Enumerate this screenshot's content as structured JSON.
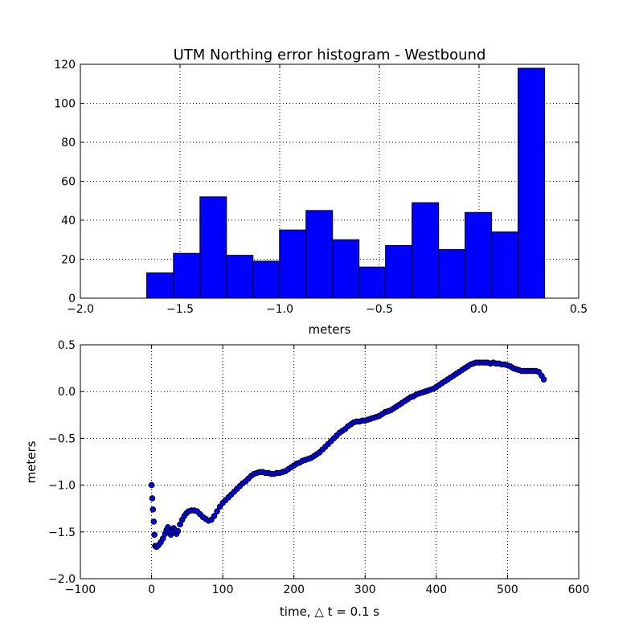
{
  "chart_data": [
    {
      "type": "bar",
      "title": "UTM Northing error histogram - Westbound",
      "xlabel": "meters",
      "ylabel": "",
      "xlim": [
        -2.0,
        0.5
      ],
      "ylim": [
        0,
        120
      ],
      "xticks": [
        -2.0,
        -1.5,
        -1.0,
        -0.5,
        0.0,
        0.5
      ],
      "xtick_labels": [
        "−2.0",
        "−1.5",
        "−1.0",
        "−0.5",
        "0.0",
        "0.5"
      ],
      "yticks": [
        0,
        20,
        40,
        60,
        80,
        100,
        120
      ],
      "ytick_labels": [
        "0",
        "20",
        "40",
        "60",
        "80",
        "100",
        "120"
      ],
      "grid": true,
      "bar_color": "#0000ff",
      "bins": [
        {
          "start": -1.667,
          "end": -1.533,
          "count": 13
        },
        {
          "start": -1.533,
          "end": -1.4,
          "count": 23
        },
        {
          "start": -1.4,
          "end": -1.267,
          "count": 52
        },
        {
          "start": -1.267,
          "end": -1.134,
          "count": 22
        },
        {
          "start": -1.134,
          "end": -1.001,
          "count": 19
        },
        {
          "start": -1.001,
          "end": -0.868,
          "count": 35
        },
        {
          "start": -0.868,
          "end": -0.735,
          "count": 45
        },
        {
          "start": -0.735,
          "end": -0.602,
          "count": 30
        },
        {
          "start": -0.602,
          "end": -0.469,
          "count": 16
        },
        {
          "start": -0.469,
          "end": -0.336,
          "count": 27
        },
        {
          "start": -0.336,
          "end": -0.203,
          "count": 49
        },
        {
          "start": -0.203,
          "end": -0.07,
          "count": 25
        },
        {
          "start": -0.07,
          "end": 0.063,
          "count": 44
        },
        {
          "start": 0.063,
          "end": 0.196,
          "count": 34
        },
        {
          "start": 0.196,
          "end": 0.329,
          "count": 118
        }
      ]
    },
    {
      "type": "scatter",
      "title": "",
      "xlabel": "time, △ t = 0.1 s",
      "ylabel": "meters",
      "xlim": [
        -100,
        600
      ],
      "ylim": [
        -2.0,
        0.5
      ],
      "xticks": [
        -100,
        0,
        100,
        200,
        300,
        400,
        500,
        600
      ],
      "xtick_labels": [
        "−100",
        "0",
        "100",
        "200",
        "300",
        "400",
        "500",
        "600"
      ],
      "yticks": [
        -2.0,
        -1.5,
        -1.0,
        -0.5,
        0.0,
        0.5
      ],
      "ytick_labels": [
        "−2.0",
        "−1.5",
        "−1.0",
        "−0.5",
        "0.0",
        "0.5"
      ],
      "grid": true,
      "marker_color": "#0000ff",
      "marker_edge": "#000000",
      "points": [
        [
          0,
          -1.0
        ],
        [
          1,
          -1.14
        ],
        [
          2,
          -1.26
        ],
        [
          3,
          -1.39
        ],
        [
          4,
          -1.53
        ],
        [
          5,
          -1.65
        ],
        [
          7,
          -1.66
        ],
        [
          10,
          -1.64
        ],
        [
          13,
          -1.61
        ],
        [
          16,
          -1.57
        ],
        [
          19,
          -1.52
        ],
        [
          21,
          -1.48
        ],
        [
          23,
          -1.45
        ],
        [
          25,
          -1.49
        ],
        [
          27,
          -1.53
        ],
        [
          29,
          -1.5
        ],
        [
          31,
          -1.46
        ],
        [
          33,
          -1.48
        ],
        [
          35,
          -1.52
        ],
        [
          37,
          -1.49
        ],
        [
          40,
          -1.42
        ],
        [
          43,
          -1.37
        ],
        [
          46,
          -1.33
        ],
        [
          49,
          -1.3
        ],
        [
          52,
          -1.28
        ],
        [
          56,
          -1.27
        ],
        [
          60,
          -1.27
        ],
        [
          64,
          -1.28
        ],
        [
          68,
          -1.31
        ],
        [
          72,
          -1.34
        ],
        [
          76,
          -1.36
        ],
        [
          80,
          -1.38
        ],
        [
          84,
          -1.37
        ],
        [
          88,
          -1.33
        ],
        [
          92,
          -1.28
        ],
        [
          96,
          -1.23
        ],
        [
          100,
          -1.19
        ],
        [
          104,
          -1.16
        ],
        [
          108,
          -1.13
        ],
        [
          112,
          -1.1
        ],
        [
          116,
          -1.07
        ],
        [
          120,
          -1.04
        ],
        [
          124,
          -1.01
        ],
        [
          128,
          -0.98
        ],
        [
          132,
          -0.96
        ],
        [
          136,
          -0.93
        ],
        [
          140,
          -0.9
        ],
        [
          144,
          -0.88
        ],
        [
          148,
          -0.87
        ],
        [
          152,
          -0.86
        ],
        [
          156,
          -0.86
        ],
        [
          160,
          -0.87
        ],
        [
          164,
          -0.87
        ],
        [
          168,
          -0.88
        ],
        [
          172,
          -0.88
        ],
        [
          176,
          -0.87
        ],
        [
          180,
          -0.87
        ],
        [
          184,
          -0.86
        ],
        [
          188,
          -0.85
        ],
        [
          192,
          -0.83
        ],
        [
          196,
          -0.81
        ],
        [
          200,
          -0.79
        ],
        [
          204,
          -0.77
        ],
        [
          208,
          -0.76
        ],
        [
          212,
          -0.74
        ],
        [
          216,
          -0.73
        ],
        [
          220,
          -0.72
        ],
        [
          224,
          -0.71
        ],
        [
          228,
          -0.69
        ],
        [
          232,
          -0.67
        ],
        [
          236,
          -0.65
        ],
        [
          240,
          -0.62
        ],
        [
          244,
          -0.59
        ],
        [
          248,
          -0.56
        ],
        [
          252,
          -0.53
        ],
        [
          256,
          -0.5
        ],
        [
          260,
          -0.47
        ],
        [
          264,
          -0.44
        ],
        [
          268,
          -0.42
        ],
        [
          272,
          -0.4
        ],
        [
          276,
          -0.37
        ],
        [
          280,
          -0.35
        ],
        [
          284,
          -0.33
        ],
        [
          288,
          -0.32
        ],
        [
          292,
          -0.32
        ],
        [
          296,
          -0.31
        ],
        [
          300,
          -0.31
        ],
        [
          304,
          -0.3
        ],
        [
          308,
          -0.29
        ],
        [
          312,
          -0.28
        ],
        [
          316,
          -0.27
        ],
        [
          320,
          -0.26
        ],
        [
          324,
          -0.24
        ],
        [
          328,
          -0.22
        ],
        [
          332,
          -0.21
        ],
        [
          336,
          -0.2
        ],
        [
          340,
          -0.18
        ],
        [
          344,
          -0.16
        ],
        [
          348,
          -0.14
        ],
        [
          352,
          -0.12
        ],
        [
          356,
          -0.1
        ],
        [
          360,
          -0.08
        ],
        [
          364,
          -0.06
        ],
        [
          368,
          -0.05
        ],
        [
          372,
          -0.03
        ],
        [
          376,
          -0.02
        ],
        [
          380,
          -0.01
        ],
        [
          384,
          0.0
        ],
        [
          388,
          0.01
        ],
        [
          392,
          0.02
        ],
        [
          396,
          0.03
        ],
        [
          400,
          0.05
        ],
        [
          404,
          0.07
        ],
        [
          408,
          0.09
        ],
        [
          412,
          0.11
        ],
        [
          416,
          0.13
        ],
        [
          420,
          0.15
        ],
        [
          424,
          0.17
        ],
        [
          428,
          0.19
        ],
        [
          432,
          0.21
        ],
        [
          436,
          0.23
        ],
        [
          440,
          0.25
        ],
        [
          444,
          0.27
        ],
        [
          448,
          0.29
        ],
        [
          452,
          0.3
        ],
        [
          456,
          0.31
        ],
        [
          460,
          0.31
        ],
        [
          464,
          0.31
        ],
        [
          468,
          0.31
        ],
        [
          472,
          0.31
        ],
        [
          476,
          0.3
        ],
        [
          480,
          0.31
        ],
        [
          484,
          0.3
        ],
        [
          488,
          0.3
        ],
        [
          492,
          0.29
        ],
        [
          496,
          0.29
        ],
        [
          500,
          0.28
        ],
        [
          504,
          0.27
        ],
        [
          508,
          0.25
        ],
        [
          512,
          0.24
        ],
        [
          516,
          0.23
        ],
        [
          520,
          0.22
        ],
        [
          524,
          0.22
        ],
        [
          528,
          0.22
        ],
        [
          532,
          0.22
        ],
        [
          536,
          0.22
        ],
        [
          540,
          0.22
        ],
        [
          544,
          0.21
        ],
        [
          548,
          0.17
        ],
        [
          551,
          0.13
        ]
      ]
    }
  ]
}
